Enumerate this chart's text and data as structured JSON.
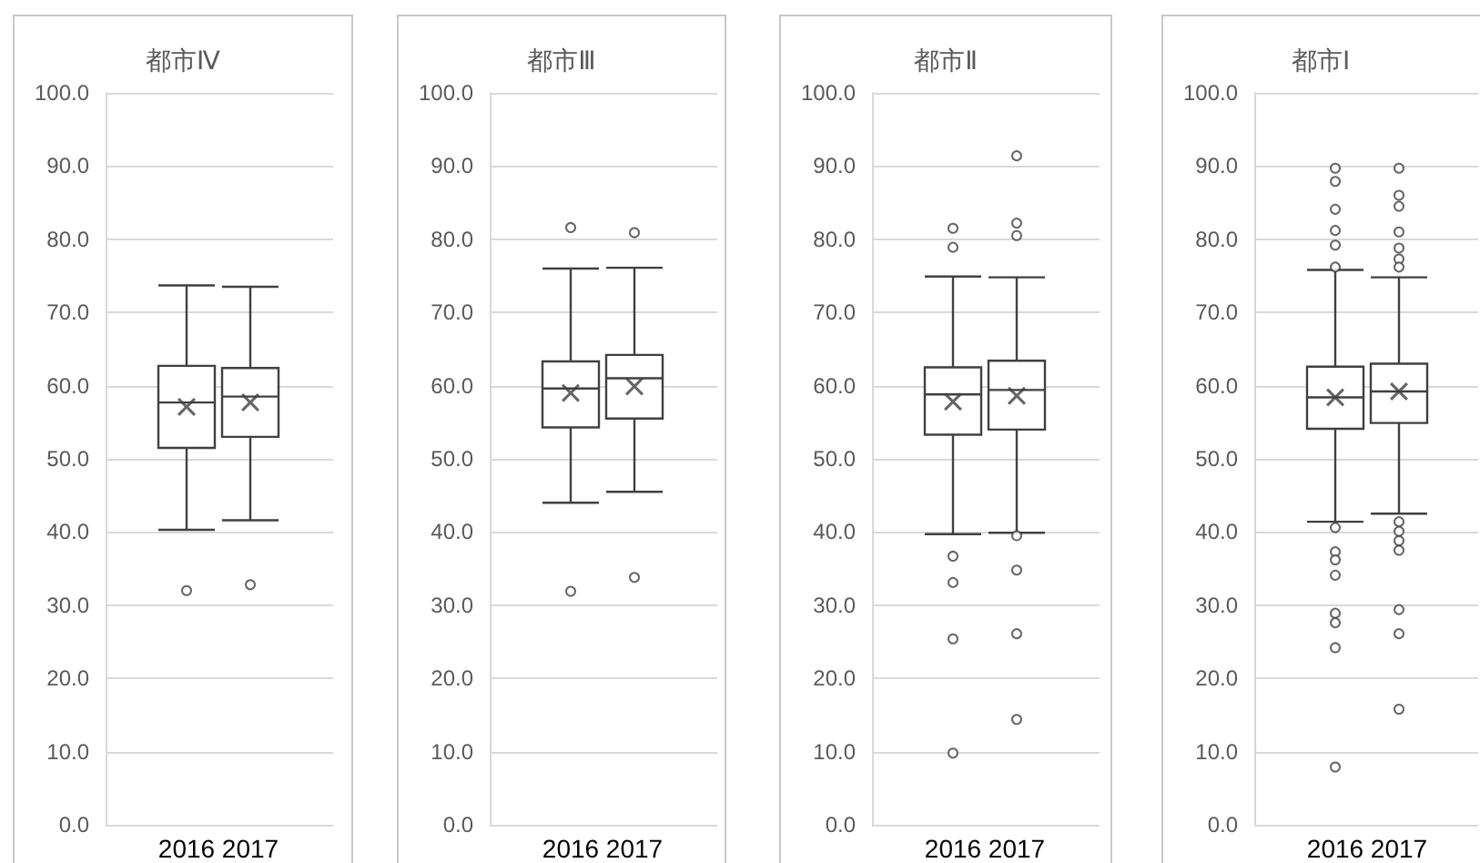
{
  "chart_data": [
    {
      "type": "box",
      "title": "都市Ⅳ",
      "categories": [
        "2016",
        "2017"
      ],
      "color": "#404040",
      "ylim": [
        0,
        100
      ],
      "yticks": [
        {
          "value": 0,
          "label": "0.0"
        },
        {
          "value": 10,
          "label": "10.0"
        },
        {
          "value": 20,
          "label": "20.0"
        },
        {
          "value": 30,
          "label": "30.0"
        },
        {
          "value": 40,
          "label": "40.0"
        },
        {
          "value": 50,
          "label": "50.0"
        },
        {
          "value": 60,
          "label": "60.0"
        },
        {
          "value": 70,
          "label": "70.0"
        },
        {
          "value": 80,
          "label": "80.0"
        },
        {
          "value": 90,
          "label": "90.0"
        },
        {
          "value": 100,
          "label": "100.0"
        }
      ],
      "grid": "y",
      "boxes": [
        {
          "low": 40.3,
          "q1": 51.5,
          "median": 57.7,
          "q3": 62.7,
          "high": 73.7,
          "mean": 57.1,
          "outliers": [
            32.0
          ]
        },
        {
          "low": 41.6,
          "q1": 53.0,
          "median": 58.5,
          "q3": 62.4,
          "high": 73.5,
          "mean": 57.7,
          "outliers": [
            32.8
          ]
        }
      ]
    },
    {
      "type": "box",
      "title": "都市Ⅲ",
      "categories": [
        "2016",
        "2017"
      ],
      "color": "#404040",
      "ylim": [
        0,
        100
      ],
      "yticks": [
        {
          "value": 0,
          "label": "0.0"
        },
        {
          "value": 10,
          "label": "10.0"
        },
        {
          "value": 20,
          "label": "20.0"
        },
        {
          "value": 30,
          "label": "30.0"
        },
        {
          "value": 40,
          "label": "40.0"
        },
        {
          "value": 50,
          "label": "50.0"
        },
        {
          "value": 60,
          "label": "60.0"
        },
        {
          "value": 70,
          "label": "70.0"
        },
        {
          "value": 80,
          "label": "80.0"
        },
        {
          "value": 90,
          "label": "90.0"
        },
        {
          "value": 100,
          "label": "100.0"
        }
      ],
      "grid": "y",
      "boxes": [
        {
          "low": 44.0,
          "q1": 54.3,
          "median": 59.6,
          "q3": 63.3,
          "high": 76.0,
          "mean": 59.0,
          "outliers": [
            81.6,
            31.9
          ]
        },
        {
          "low": 45.5,
          "q1": 55.5,
          "median": 61.0,
          "q3": 64.2,
          "high": 76.1,
          "mean": 59.9,
          "outliers": [
            80.9,
            33.8
          ]
        }
      ]
    },
    {
      "type": "box",
      "title": "都市Ⅱ",
      "categories": [
        "2016",
        "2017"
      ],
      "color": "#404040",
      "ylim": [
        0,
        100
      ],
      "yticks": [
        {
          "value": 0,
          "label": "0.0"
        },
        {
          "value": 10,
          "label": "10.0"
        },
        {
          "value": 20,
          "label": "20.0"
        },
        {
          "value": 30,
          "label": "30.0"
        },
        {
          "value": 40,
          "label": "40.0"
        },
        {
          "value": 50,
          "label": "50.0"
        },
        {
          "value": 60,
          "label": "60.0"
        },
        {
          "value": 70,
          "label": "70.0"
        },
        {
          "value": 80,
          "label": "80.0"
        },
        {
          "value": 90,
          "label": "90.0"
        },
        {
          "value": 100,
          "label": "100.0"
        }
      ],
      "grid": "y",
      "boxes": [
        {
          "low": 39.7,
          "q1": 53.3,
          "median": 58.8,
          "q3": 62.5,
          "high": 74.9,
          "mean": 57.8,
          "outliers": [
            81.5,
            78.9,
            36.7,
            33.1,
            25.4,
            9.8
          ]
        },
        {
          "low": 39.9,
          "q1": 54.0,
          "median": 59.4,
          "q3": 63.4,
          "high": 74.8,
          "mean": 58.6,
          "outliers": [
            91.4,
            82.2,
            80.5,
            39.5,
            34.8,
            26.1,
            14.4
          ]
        }
      ]
    },
    {
      "type": "box",
      "title": "都市Ⅰ",
      "categories": [
        "2016",
        "2017"
      ],
      "color": "#404040",
      "ylim": [
        0,
        100
      ],
      "yticks": [
        {
          "value": 0,
          "label": "0.0"
        },
        {
          "value": 10,
          "label": "10.0"
        },
        {
          "value": 20,
          "label": "20.0"
        },
        {
          "value": 30,
          "label": "30.0"
        },
        {
          "value": 40,
          "label": "40.0"
        },
        {
          "value": 50,
          "label": "50.0"
        },
        {
          "value": 60,
          "label": "60.0"
        },
        {
          "value": 70,
          "label": "70.0"
        },
        {
          "value": 80,
          "label": "80.0"
        },
        {
          "value": 90,
          "label": "90.0"
        },
        {
          "value": 100,
          "label": "100.0"
        }
      ],
      "grid": "y",
      "boxes": [
        {
          "low": 41.4,
          "q1": 54.1,
          "median": 58.4,
          "q3": 62.6,
          "high": 75.8,
          "mean": 58.4,
          "outliers": [
            89.7,
            87.9,
            84.1,
            81.2,
            79.2,
            76.2,
            40.6,
            37.3,
            36.2,
            34.1,
            28.9,
            27.6,
            24.2,
            7.9
          ]
        },
        {
          "low": 42.5,
          "q1": 54.9,
          "median": 59.2,
          "q3": 63.0,
          "high": 74.8,
          "mean": 59.2,
          "outliers": [
            89.7,
            86.0,
            84.5,
            81.0,
            78.8,
            77.3,
            76.2,
            41.4,
            40.1,
            38.8,
            37.5,
            29.4,
            26.1,
            15.8
          ]
        }
      ]
    }
  ]
}
